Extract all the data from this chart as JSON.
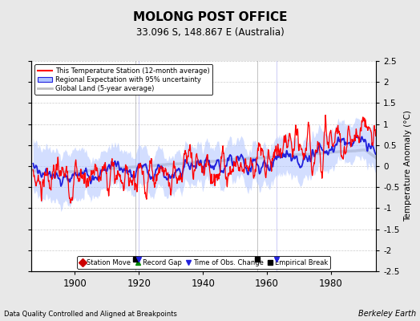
{
  "title": "MOLONG POST OFFICE",
  "subtitle": "33.096 S, 148.867 E (Australia)",
  "ylabel": "Temperature Anomaly (°C)",
  "xlabel_left": "Data Quality Controlled and Aligned at Breakpoints",
  "xlabel_right": "Berkeley Earth",
  "year_start": 1887,
  "year_end": 1993,
  "ylim": [
    -2.5,
    2.5
  ],
  "yticks": [
    -2.5,
    -2,
    -1.5,
    -1,
    -0.5,
    0,
    0.5,
    1,
    1.5,
    2,
    2.5
  ],
  "xticks": [
    1900,
    1920,
    1940,
    1960,
    1980
  ],
  "empirical_breaks": [
    1919,
    1957
  ],
  "obs_changes": [
    1963
  ],
  "time_of_obs": [
    1920
  ],
  "station_moves": [],
  "record_gaps": [],
  "legend_items": [
    {
      "label": "This Temperature Station (12-month average)",
      "color": "#ff0000",
      "lw": 1.5
    },
    {
      "label": "Regional Expectation with 95% uncertainty",
      "color": "#4444ff",
      "lw": 1.5
    },
    {
      "label": "Global Land (5-year average)",
      "color": "#aaaaaa",
      "lw": 2.0
    }
  ],
  "bg_color": "#e8e8e8",
  "plot_bg": "#ffffff",
  "grid_color": "#cccccc"
}
